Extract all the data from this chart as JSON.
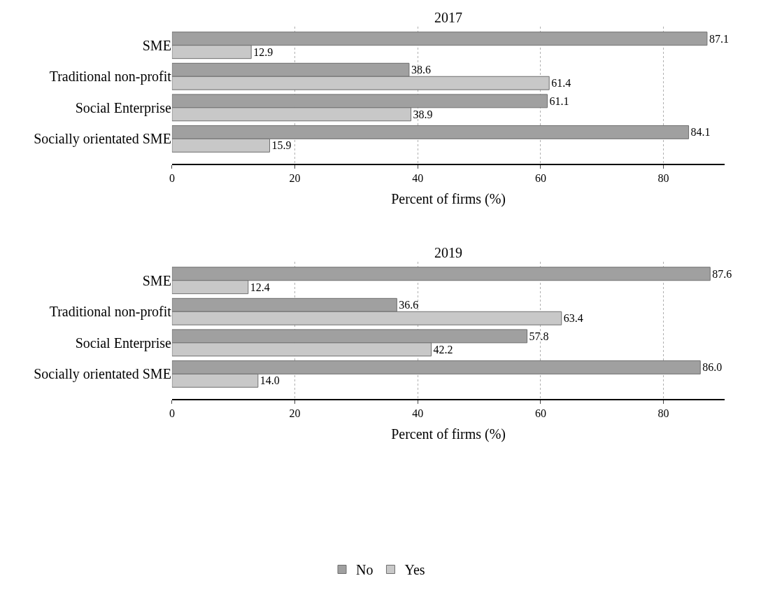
{
  "chart_data": [
    {
      "type": "bar",
      "orientation": "horizontal",
      "title": "2017",
      "xlabel": "Percent of firms (%)",
      "categories": [
        "SME",
        "Traditional non-profit",
        "Social Enterprise",
        "Socially orientated SME"
      ],
      "series": [
        {
          "name": "No",
          "color": "#a0a0a0",
          "values": [
            87.1,
            38.6,
            61.1,
            84.1
          ],
          "value_labels": [
            "87.1",
            "38.6",
            "61.1",
            "84.1"
          ]
        },
        {
          "name": "Yes",
          "color": "#c8c8c8",
          "values": [
            12.9,
            61.4,
            38.9,
            15.9
          ],
          "value_labels": [
            "12.9",
            "61.4",
            "38.9",
            "15.9"
          ]
        }
      ],
      "xlim": [
        0,
        90
      ],
      "xticks": [
        0,
        20,
        40,
        60,
        80
      ],
      "grid": "x",
      "legend": "bottom"
    },
    {
      "type": "bar",
      "orientation": "horizontal",
      "title": "2019",
      "xlabel": "Percent of firms (%)",
      "categories": [
        "SME",
        "Traditional non-profit",
        "Social Enterprise",
        "Socially orientated SME"
      ],
      "series": [
        {
          "name": "No",
          "color": "#a0a0a0",
          "values": [
            87.6,
            36.6,
            57.8,
            86.0
          ],
          "value_labels": [
            "87.6",
            "36.6",
            "57.8",
            "86.0"
          ]
        },
        {
          "name": "Yes",
          "color": "#c8c8c8",
          "values": [
            12.4,
            63.4,
            42.2,
            14.0
          ],
          "value_labels": [
            "12.4",
            "63.4",
            "42.2",
            "14.0"
          ]
        }
      ],
      "xlim": [
        0,
        90
      ],
      "xticks": [
        0,
        20,
        40,
        60,
        80
      ],
      "grid": "x",
      "legend": "bottom"
    }
  ]
}
